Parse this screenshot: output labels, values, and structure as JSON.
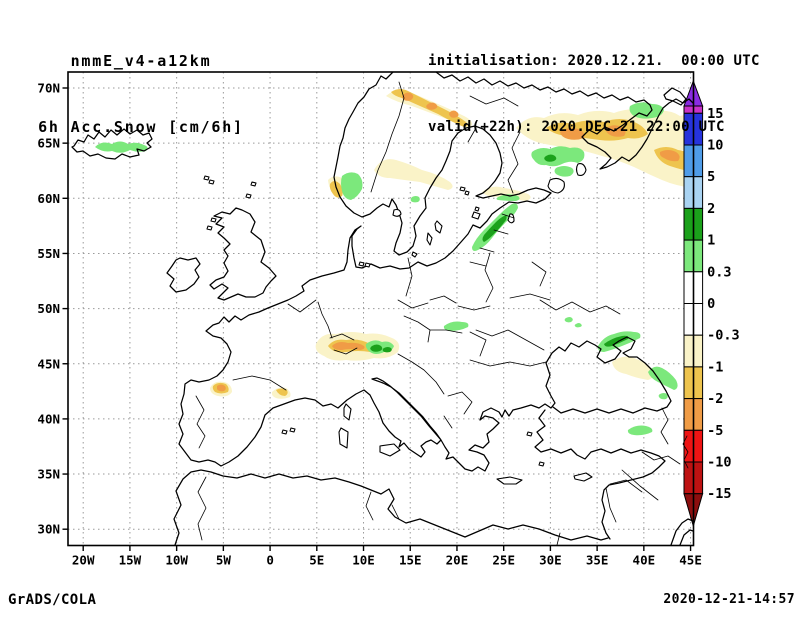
{
  "header": {
    "model": "nmmE_v4-a12km",
    "field": "6h Acc.Snow [cm/6h]",
    "initialisation": "initialisation: 2020.12.21.  00:00 UTC",
    "valid": "valid(+22h): 2020.DEC.21 22:00 UTC"
  },
  "footer": {
    "left": "GrADS/COLA",
    "right": "2020-12-21-14:57"
  },
  "palette": {
    "purple": "#8A2BE2",
    "magenta": "#C832C8",
    "darkblue": "#2633DC",
    "midblue": "#4F9CE8",
    "lightblue": "#A9D3F2",
    "darkgreen": "#1BA11B",
    "lightgreen": "#7CE87C",
    "white": "#FFFFFF",
    "cream": "#FAF3C8",
    "gold": "#EEC44E",
    "orange": "#F09C46",
    "red": "#EE1414",
    "darkred": "#BE1212",
    "maroon": "#8C0E0E",
    "grid": "#9a9a9a"
  },
  "chart_data": {
    "type": "heatmap",
    "title": "nmmE_v4-a12km  6h Acc.Snow [cm/6h]",
    "subtitle": "initialisation: 2020.12.21. 00:00 UTC, valid(+22h): 2020.DEC.21 22:00 UTC",
    "projection": "lat-lon map of Europe",
    "grid": true,
    "legend_position": "right",
    "x_axis": {
      "label_ticks": [
        "20W",
        "15W",
        "10W",
        "5W",
        "0",
        "5E",
        "10E",
        "15E",
        "20E",
        "25E",
        "30E",
        "35E",
        "40E",
        "45E"
      ],
      "range_deg_lon": [
        -21.6,
        45.3
      ]
    },
    "y_axis": {
      "label_ticks": [
        "70N",
        "65N",
        "60N",
        "55N",
        "50N",
        "45N",
        "40N",
        "35N",
        "30N"
      ],
      "range_deg_lat": [
        28.6,
        71.5
      ]
    },
    "colorbar": {
      "units": "cm/6h",
      "tick_labels": [
        "15",
        "10",
        "5",
        "2",
        "1",
        "0.3",
        "0",
        "-0.3",
        "-1",
        "-2",
        "-5",
        "-10",
        "-15"
      ],
      "segments_top_to_bottom": [
        {
          "range": "above 15 (arrow)",
          "color": "#8A2BE2",
          "shape": "triangle-up"
        },
        {
          "range": "above 15",
          "color": "#C832C8"
        },
        {
          "range": "10 to 15",
          "color": "#2633DC"
        },
        {
          "range": "5 to 10",
          "color": "#4F9CE8"
        },
        {
          "range": "2 to 5",
          "color": "#A9D3F2"
        },
        {
          "range": "1 to 2",
          "color": "#1BA11B"
        },
        {
          "range": "0.3 to 1",
          "color": "#7CE87C"
        },
        {
          "range": "0 to 0.3",
          "color": "#FFFFFF"
        },
        {
          "range": "-0.3 to 0",
          "color": "#FFFFFF"
        },
        {
          "range": "-1 to -0.3",
          "color": "#FAF3C8"
        },
        {
          "range": "-2 to -1",
          "color": "#EEC44E"
        },
        {
          "range": "-5 to -2",
          "color": "#F09C46"
        },
        {
          "range": "-10 to -5",
          "color": "#EE1414"
        },
        {
          "range": "-15 to -10",
          "color": "#BE1212"
        },
        {
          "range": "below -15 (arrow)",
          "color": "#8C0E0E",
          "shape": "triangle-down"
        }
      ]
    },
    "shaded_regions": [
      {
        "area": "Central Iceland",
        "value_cm": "0.3 to 1"
      },
      {
        "area": "Southern Norway mountains",
        "value_cm": "0.3 to 1, coastal strip -1 to -2"
      },
      {
        "area": "Northern Norway coast",
        "value_cm": "-1 to -5"
      },
      {
        "area": "Central Sweden / southern Finland",
        "value_cm": "-0.3 to -1"
      },
      {
        "area": "Kola Peninsula / White Sea",
        "value_cm": "-1 to -5"
      },
      {
        "area": "Far NE corner (Barents coast)",
        "value_cm": "0.3 to 1"
      },
      {
        "area": "Karelia / NW Russia",
        "value_cm": "0.3 to 1"
      },
      {
        "area": "Estonia-Latvia diagonal band",
        "value_cm": "0.3 to 2"
      },
      {
        "area": "Alps",
        "value_cm": "0.3 to 2 east, -1 to -5 west"
      },
      {
        "area": "Cantabria and Pyrenees (N Spain)",
        "value_cm": "-1 to -5 spots"
      },
      {
        "area": "Carpathians (Slovakia/Ukraine)",
        "value_cm": "0.3 to 1"
      },
      {
        "area": "North of Crimea",
        "value_cm": "0.3 to 2"
      },
      {
        "area": "Caucasus Black Sea coast",
        "value_cm": "0.3 to 1"
      },
      {
        "area": "Northern Turkey spots",
        "value_cm": "0.3 to 1"
      }
    ]
  }
}
